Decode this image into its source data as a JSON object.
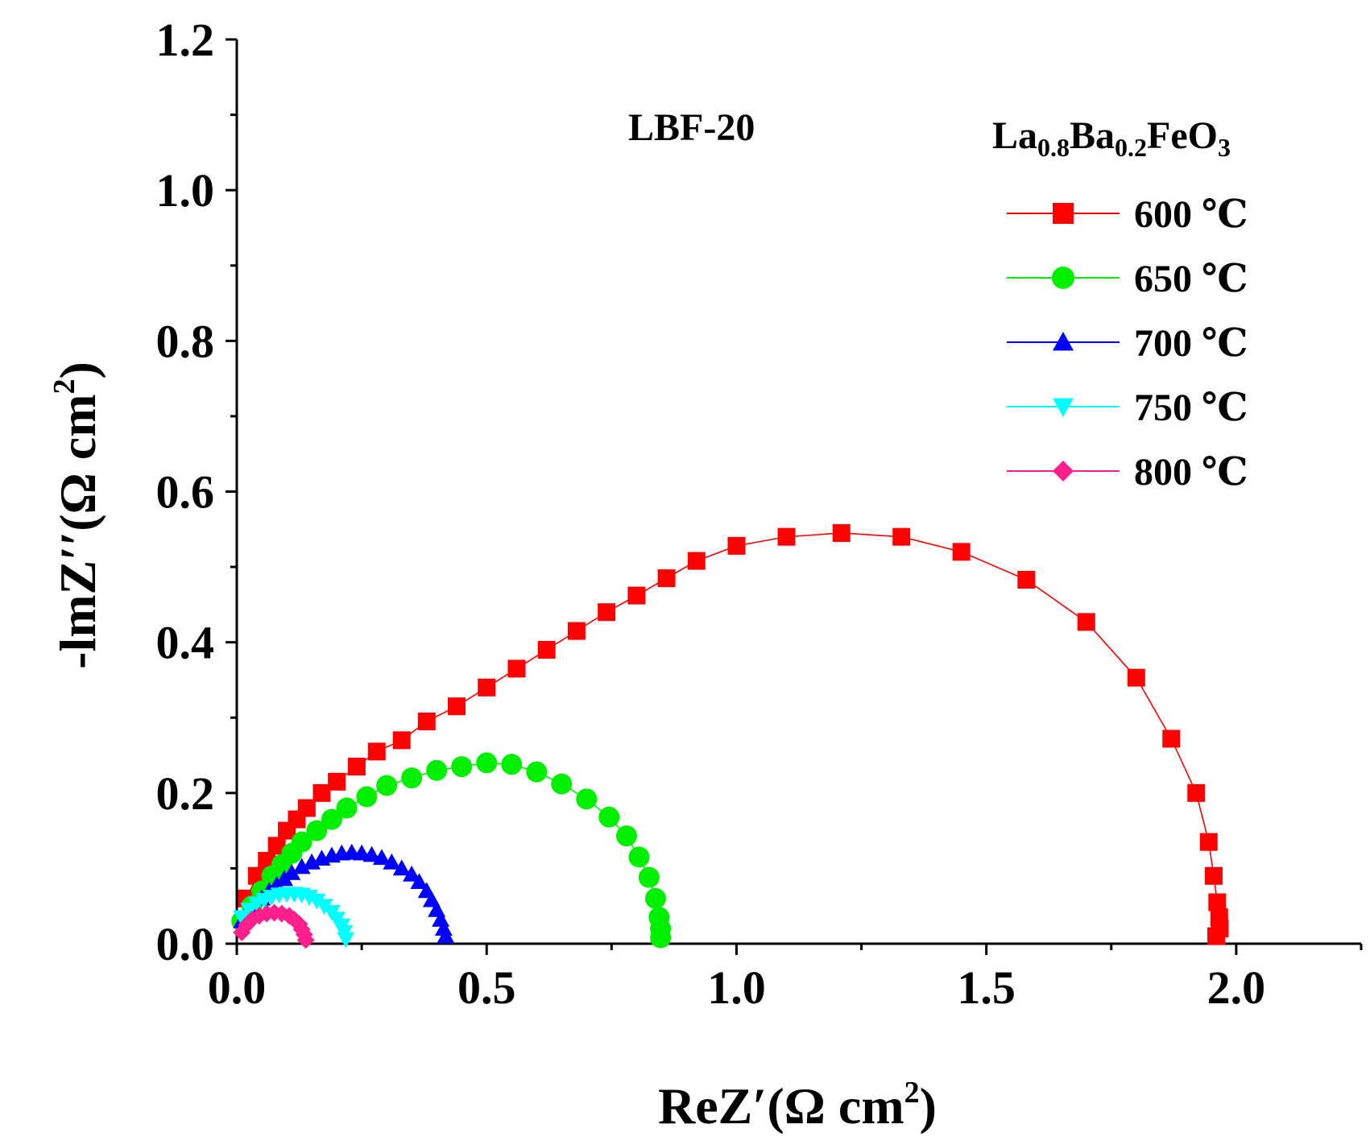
{
  "chart_data": {
    "type": "scatter",
    "xlabel": {
      "main": "ReZ",
      "prime": "′",
      "open": "(Ω cm",
      "sup": "2",
      "close": ")"
    },
    "ylabel": {
      "main": "-lmZ",
      "prime": "′′",
      "open": "(Ω cm",
      "sup": "2",
      "close": ")"
    },
    "xlim": [
      0,
      2.25
    ],
    "ylim": [
      0,
      1.2
    ],
    "xticks": [
      "0.0",
      "0.5",
      "1.0",
      "1.5",
      "2.0"
    ],
    "yticks": [
      "0.0",
      "0.2",
      "0.4",
      "0.6",
      "0.8",
      "1.0",
      "1.2"
    ],
    "legend_position": "top-right",
    "annotations": {
      "sample": "LBF-20",
      "formula": {
        "p1": "La",
        "s1": "0.8",
        "p2": "Ba",
        "s2": "0.2",
        "p3": "FeO",
        "s3": "3"
      }
    },
    "series": [
      {
        "name": "600 ℃",
        "color": "#ff0000",
        "marker": "square",
        "points": [
          [
            0.02,
            0.06
          ],
          [
            0.04,
            0.09
          ],
          [
            0.06,
            0.11
          ],
          [
            0.08,
            0.13
          ],
          [
            0.1,
            0.15
          ],
          [
            0.12,
            0.165
          ],
          [
            0.14,
            0.18
          ],
          [
            0.17,
            0.2
          ],
          [
            0.2,
            0.215
          ],
          [
            0.24,
            0.235
          ],
          [
            0.28,
            0.255
          ],
          [
            0.33,
            0.27
          ],
          [
            0.38,
            0.295
          ],
          [
            0.44,
            0.315
          ],
          [
            0.5,
            0.34
          ],
          [
            0.56,
            0.365
          ],
          [
            0.62,
            0.39
          ],
          [
            0.68,
            0.415
          ],
          [
            0.74,
            0.44
          ],
          [
            0.8,
            0.462
          ],
          [
            0.86,
            0.485
          ],
          [
            0.92,
            0.508
          ],
          [
            1.0,
            0.528
          ],
          [
            1.1,
            0.54
          ],
          [
            1.21,
            0.545
          ],
          [
            1.33,
            0.54
          ],
          [
            1.45,
            0.52
          ],
          [
            1.58,
            0.483
          ],
          [
            1.7,
            0.427
          ],
          [
            1.8,
            0.353
          ],
          [
            1.87,
            0.272
          ],
          [
            1.92,
            0.2
          ],
          [
            1.945,
            0.135
          ],
          [
            1.955,
            0.09
          ],
          [
            1.962,
            0.055
          ],
          [
            1.966,
            0.035
          ],
          [
            1.967,
            0.02
          ],
          [
            1.96,
            0.01
          ]
        ]
      },
      {
        "name": "650 ℃",
        "color": "#00ee00",
        "marker": "circle",
        "points": [
          [
            0.01,
            0.03
          ],
          [
            0.03,
            0.05
          ],
          [
            0.05,
            0.07
          ],
          [
            0.07,
            0.09
          ],
          [
            0.09,
            0.105
          ],
          [
            0.11,
            0.12
          ],
          [
            0.13,
            0.135
          ],
          [
            0.16,
            0.15
          ],
          [
            0.19,
            0.165
          ],
          [
            0.22,
            0.18
          ],
          [
            0.26,
            0.195
          ],
          [
            0.3,
            0.21
          ],
          [
            0.35,
            0.22
          ],
          [
            0.4,
            0.23
          ],
          [
            0.45,
            0.235
          ],
          [
            0.5,
            0.24
          ],
          [
            0.55,
            0.238
          ],
          [
            0.6,
            0.228
          ],
          [
            0.65,
            0.212
          ],
          [
            0.7,
            0.192
          ],
          [
            0.745,
            0.168
          ],
          [
            0.78,
            0.143
          ],
          [
            0.805,
            0.115
          ],
          [
            0.825,
            0.088
          ],
          [
            0.838,
            0.06
          ],
          [
            0.845,
            0.035
          ],
          [
            0.848,
            0.02
          ],
          [
            0.848,
            0.008
          ]
        ]
      },
      {
        "name": "700 ℃",
        "color": "#0000ff",
        "marker": "triangle-up",
        "points": [
          [
            0.01,
            0.03
          ],
          [
            0.02,
            0.04
          ],
          [
            0.035,
            0.05
          ],
          [
            0.05,
            0.06
          ],
          [
            0.065,
            0.07
          ],
          [
            0.08,
            0.078
          ],
          [
            0.095,
            0.086
          ],
          [
            0.11,
            0.094
          ],
          [
            0.13,
            0.102
          ],
          [
            0.15,
            0.108
          ],
          [
            0.17,
            0.113
          ],
          [
            0.19,
            0.117
          ],
          [
            0.21,
            0.12
          ],
          [
            0.23,
            0.121
          ],
          [
            0.25,
            0.12
          ],
          [
            0.27,
            0.118
          ],
          [
            0.29,
            0.114
          ],
          [
            0.31,
            0.108
          ],
          [
            0.33,
            0.1
          ],
          [
            0.35,
            0.092
          ],
          [
            0.365,
            0.082
          ],
          [
            0.38,
            0.07
          ],
          [
            0.39,
            0.058
          ],
          [
            0.4,
            0.045
          ],
          [
            0.408,
            0.032
          ],
          [
            0.414,
            0.02
          ],
          [
            0.418,
            0.01
          ]
        ]
      },
      {
        "name": "750 ℃",
        "color": "#00ffff",
        "marker": "triangle-down",
        "points": [
          [
            0.01,
            0.035
          ],
          [
            0.025,
            0.045
          ],
          [
            0.04,
            0.053
          ],
          [
            0.055,
            0.058
          ],
          [
            0.07,
            0.062
          ],
          [
            0.085,
            0.065
          ],
          [
            0.1,
            0.066
          ],
          [
            0.115,
            0.066
          ],
          [
            0.13,
            0.065
          ],
          [
            0.145,
            0.062
          ],
          [
            0.16,
            0.057
          ],
          [
            0.175,
            0.05
          ],
          [
            0.19,
            0.042
          ],
          [
            0.2,
            0.033
          ],
          [
            0.21,
            0.024
          ],
          [
            0.215,
            0.015
          ],
          [
            0.218,
            0.006
          ]
        ]
      },
      {
        "name": "800 ℃",
        "color": "#ff1f8c",
        "marker": "diamond",
        "points": [
          [
            0.01,
            0.015
          ],
          [
            0.02,
            0.025
          ],
          [
            0.03,
            0.032
          ],
          [
            0.045,
            0.037
          ],
          [
            0.06,
            0.04
          ],
          [
            0.075,
            0.041
          ],
          [
            0.09,
            0.04
          ],
          [
            0.105,
            0.037
          ],
          [
            0.115,
            0.032
          ],
          [
            0.125,
            0.026
          ],
          [
            0.13,
            0.019
          ],
          [
            0.135,
            0.012
          ],
          [
            0.138,
            0.005
          ]
        ]
      }
    ]
  }
}
